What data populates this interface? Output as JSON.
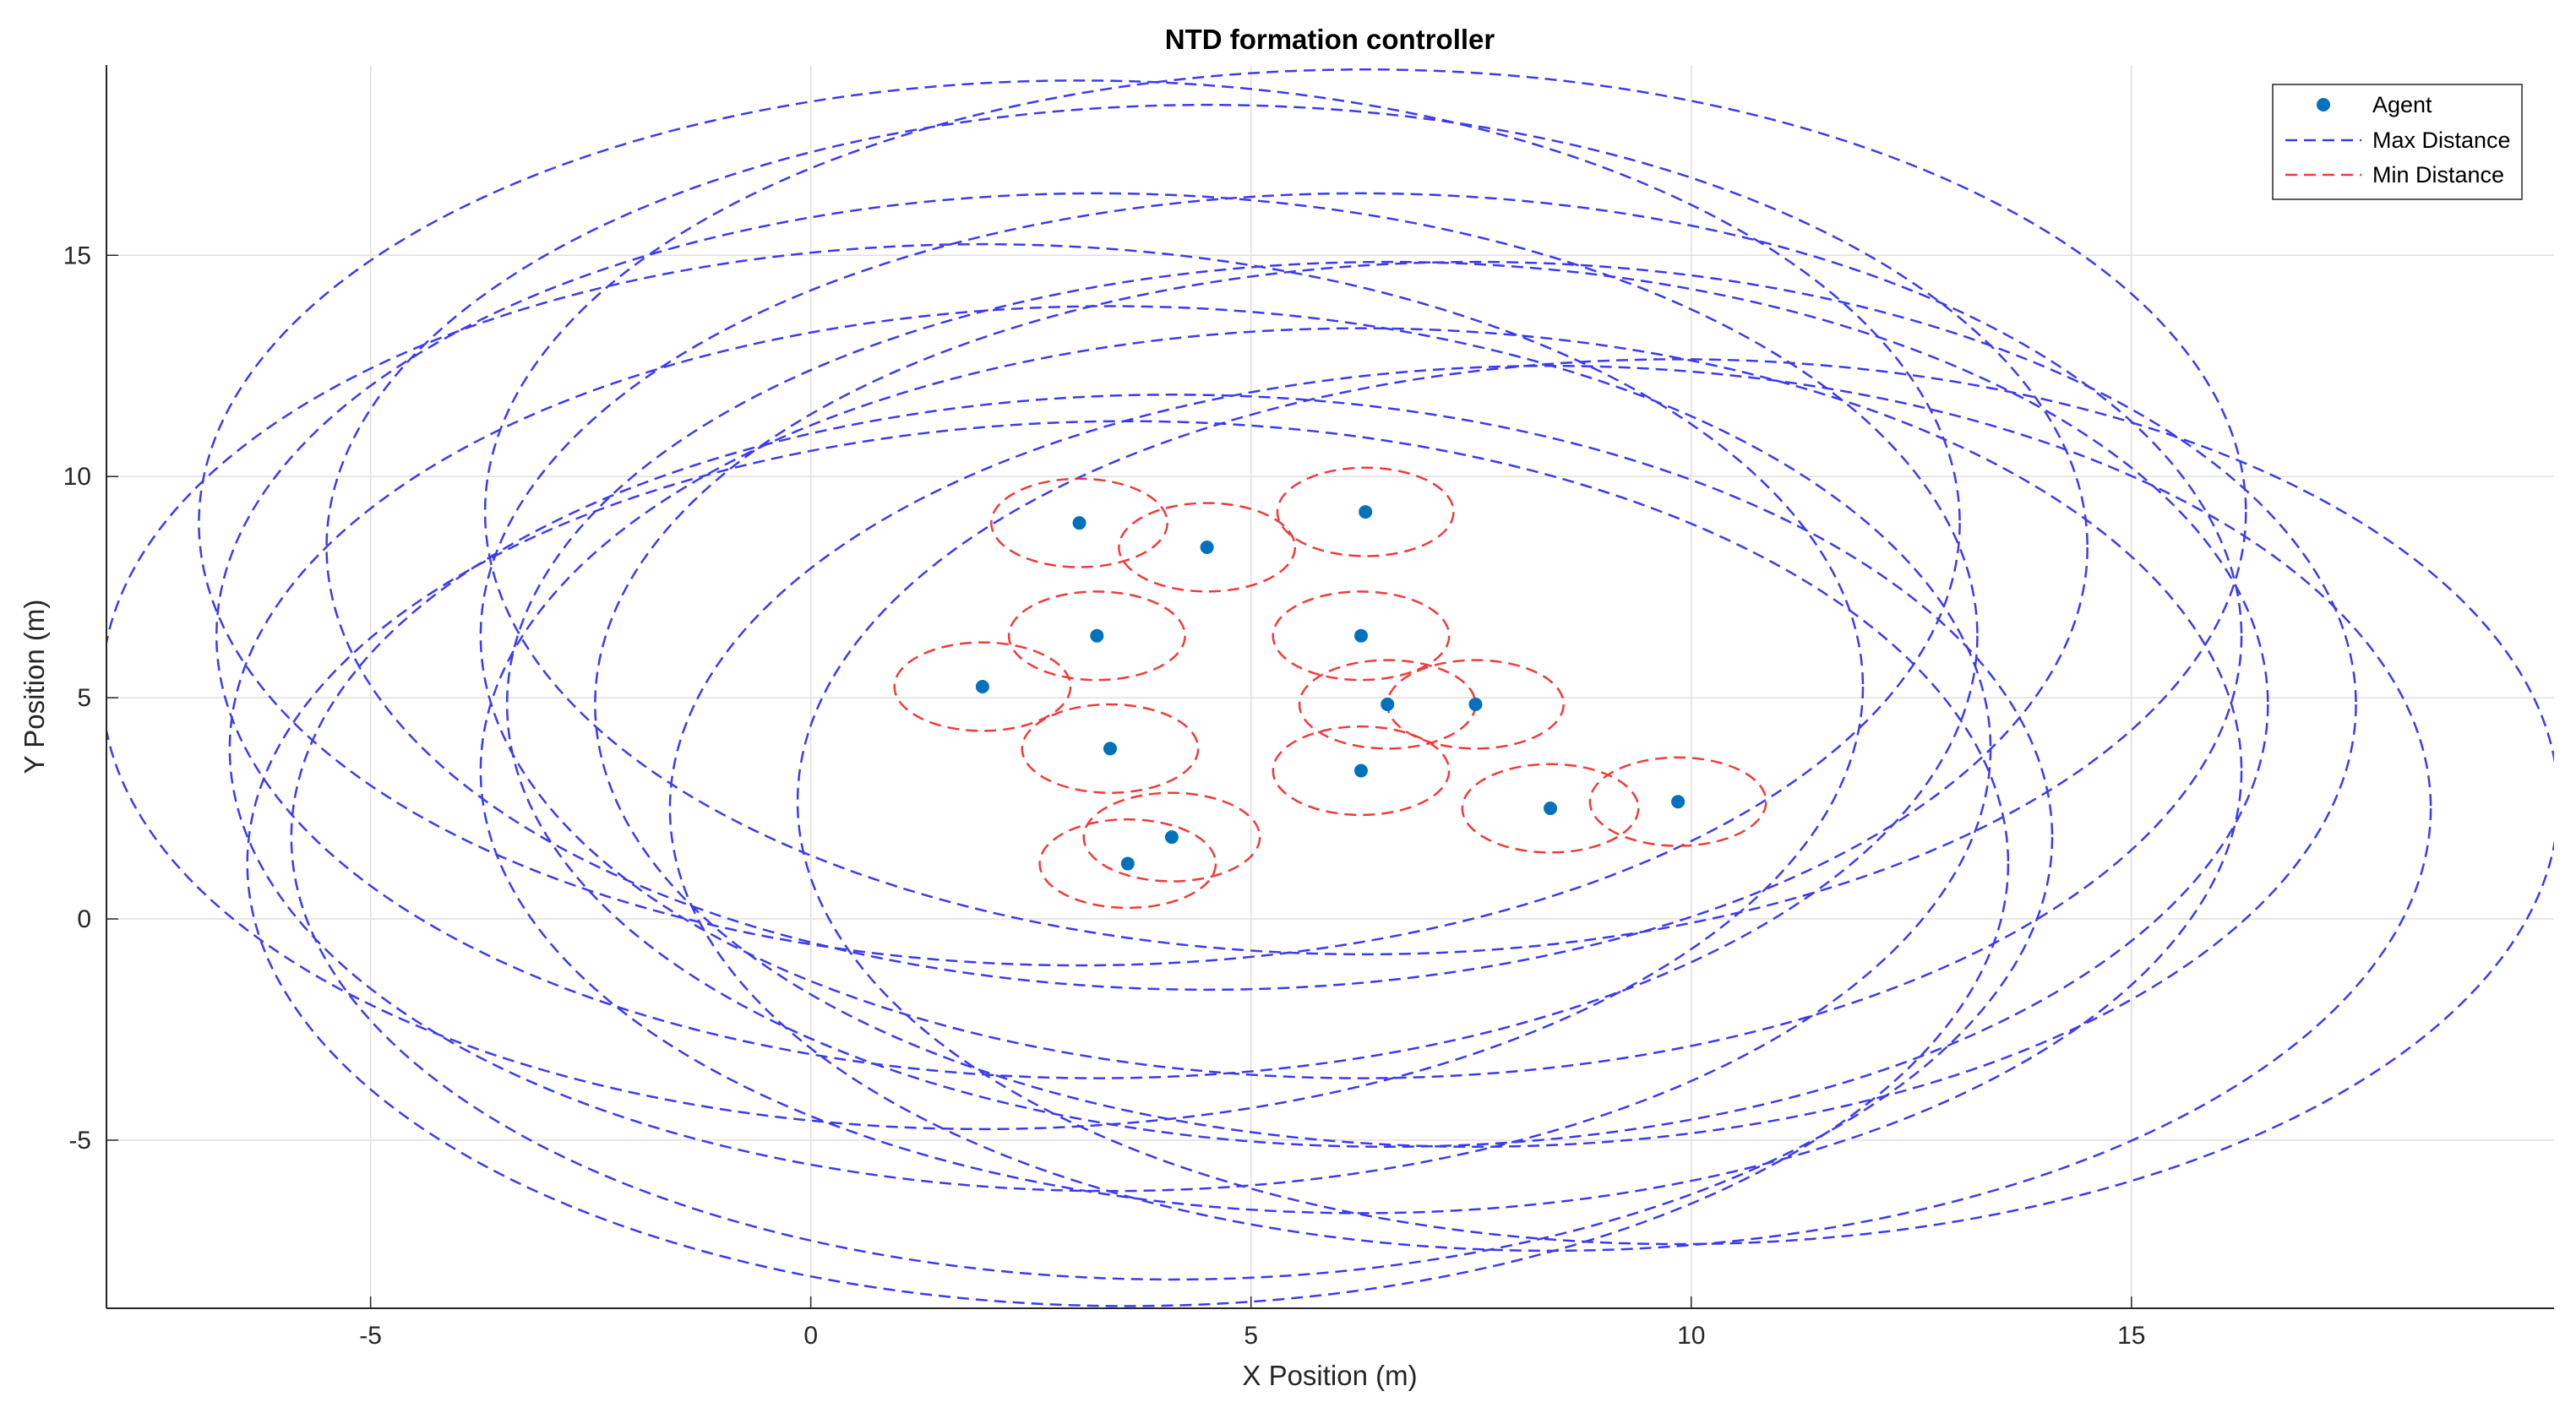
{
  "chart_data": {
    "type": "scatter",
    "title": "NTD formation controller",
    "xlabel": "X Position (m)",
    "ylabel": "Y Position (m)",
    "xlim": [
      -8,
      19.8
    ],
    "ylim": [
      -8.8,
      19.3
    ],
    "xticks": [
      -5,
      0,
      5,
      10,
      15
    ],
    "yticks": [
      -5,
      0,
      5,
      10,
      15
    ],
    "grid": true,
    "legend_position": "top-right",
    "legend": [
      "Agent",
      "Max Distance",
      "Min Distance"
    ],
    "agent_color": "#0072BD",
    "max_color": "#3B3BF0",
    "min_color": "#F03B3B",
    "min_radius": 1,
    "max_radius": 10,
    "series": [
      {
        "name": "Agent",
        "points": [
          {
            "x": 3.05,
            "y": 8.95
          },
          {
            "x": 4.5,
            "y": 8.4
          },
          {
            "x": 6.3,
            "y": 9.2
          },
          {
            "x": 3.25,
            "y": 6.4
          },
          {
            "x": 6.25,
            "y": 6.4
          },
          {
            "x": 1.95,
            "y": 5.25
          },
          {
            "x": 6.55,
            "y": 4.85
          },
          {
            "x": 7.55,
            "y": 4.85
          },
          {
            "x": 3.4,
            "y": 3.85
          },
          {
            "x": 6.25,
            "y": 3.35
          },
          {
            "x": 8.4,
            "y": 2.5
          },
          {
            "x": 9.85,
            "y": 2.65
          },
          {
            "x": 4.1,
            "y": 1.85
          },
          {
            "x": 3.6,
            "y": 1.25
          }
        ]
      }
    ]
  }
}
